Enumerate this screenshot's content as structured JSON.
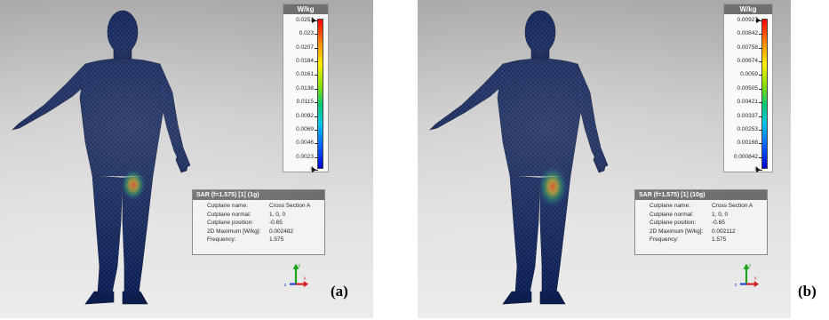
{
  "panels": [
    {
      "legend": {
        "unit": "W/kg",
        "ticks": [
          "0.0253",
          "0.023",
          "0.0207",
          "0.0184",
          "0.0161",
          "0.0138",
          "0.0115",
          "0.0092",
          "0.0069",
          "0.0046",
          "0.0023",
          "0"
        ]
      },
      "info": {
        "title": "SAR (f=1.575) [1] (1g)",
        "rows": [
          {
            "key": "Cutplane name:",
            "value": "Cross Section A"
          },
          {
            "key": "Cutplane normal:",
            "value": "1, 0, 0"
          },
          {
            "key": "Cutplane position:",
            "value": "-0.65"
          },
          {
            "key": "2D Maximum [W/kg]:",
            "value": "0.002482"
          },
          {
            "key": "Frequency:",
            "value": "1.575"
          }
        ]
      },
      "axes": {
        "y": "y",
        "z": "z",
        "x": "x"
      },
      "caption": "(a)"
    },
    {
      "legend": {
        "unit": "W/kg",
        "ticks": [
          "0.00927",
          "0.00842",
          "0.00758",
          "0.00674",
          "0.0059",
          "0.00505",
          "0.00421",
          "0.00337",
          "0.00253",
          "0.00168",
          "0.000842",
          "0"
        ]
      },
      "info": {
        "title": "SAR (f=1.575) [1] (10g)",
        "rows": [
          {
            "key": "Cutplane name:",
            "value": "Cross Section A"
          },
          {
            "key": "Cutplane normal:",
            "value": "1, 0, 0"
          },
          {
            "key": "Cutplane position:",
            "value": "-0.65"
          },
          {
            "key": "2D Maximum [W/kg]:",
            "value": "0.002112"
          },
          {
            "key": "Frequency:",
            "value": "1.575"
          }
        ]
      },
      "axes": {
        "y": "y",
        "z": "z",
        "x": "x"
      },
      "caption": "(b)"
    }
  ],
  "colors": {
    "body_dark": "#0b1a4a",
    "body_mesh": "#2a4a9a",
    "hotspot": "#e84a1a",
    "legend_header": "#6f6f6f"
  }
}
